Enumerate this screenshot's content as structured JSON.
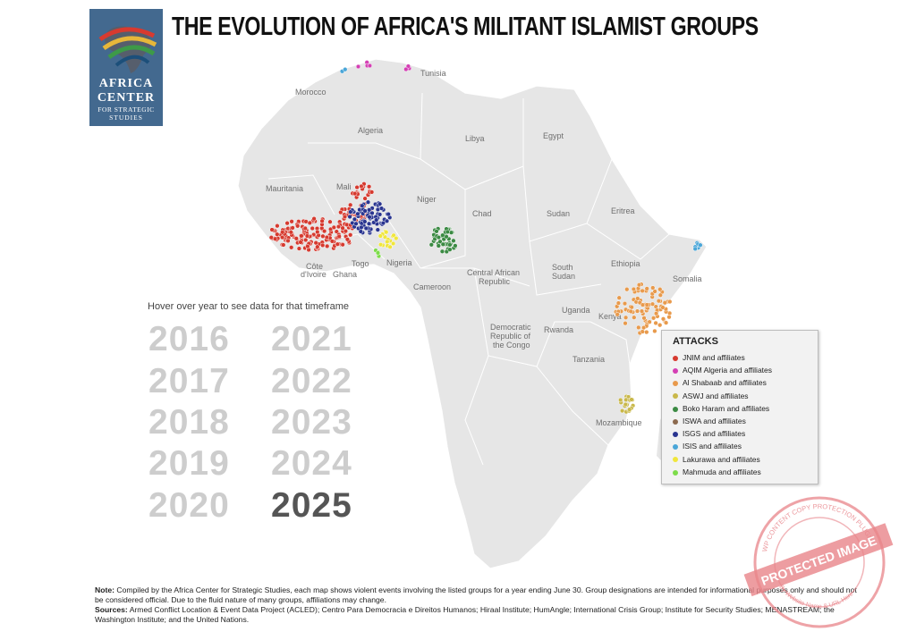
{
  "logo": {
    "line1": "AFRICA",
    "line2": "CENTER",
    "line3": "FOR STRATEGIC",
    "line4": "STUDIES"
  },
  "title": "THE EVOLUTION OF AFRICA'S MILITANT ISLAMIST GROUPS",
  "hint": "Hover over year to see data for that timeframe",
  "years": {
    "y2016": "2016",
    "y2017": "2017",
    "y2018": "2018",
    "y2019": "2019",
    "y2020": "2020",
    "y2021": "2021",
    "y2022": "2022",
    "y2023": "2023",
    "y2024": "2024",
    "y2025": "2025",
    "selected": "2025"
  },
  "countries": {
    "tunisia": "Tunisia",
    "morocco": "Morocco",
    "algeria": "Algeria",
    "libya": "Libya",
    "egypt": "Egypt",
    "mauritania": "Mauritania",
    "mali": "Mali",
    "niger": "Niger",
    "chad": "Chad",
    "sudan": "Sudan",
    "eritrea": "Eritrea",
    "ethiopia": "Ethiopia",
    "somalia": "Somalia",
    "south_sudan_1": "South",
    "south_sudan_2": "Sudan",
    "car_1": "Central African",
    "car_2": "Republic",
    "cameroon": "Cameroon",
    "nigeria": "Nigeria",
    "togo": "Togo",
    "ghana": "Ghana",
    "cote_1": "Côte",
    "cote_2": "d'Ivoire",
    "drc_1": "Democratic",
    "drc_2": "Republic of",
    "drc_3": "the Congo",
    "uganda": "Uganda",
    "kenya": "Kenya",
    "rwanda": "Rwanda",
    "tanzania": "Tanzania",
    "mozambique": "Mozambique"
  },
  "legend": {
    "title": "ATTACKS",
    "items": [
      {
        "label": "JNIM and affiliates",
        "color": "#d63a2f"
      },
      {
        "label": "AQIM Algeria and affiliates",
        "color": "#d43fb4"
      },
      {
        "label": "Al Shabaab and affiliates",
        "color": "#e89a4c"
      },
      {
        "label": "ASWJ and affiliates",
        "color": "#c9b84a"
      },
      {
        "label": "Boko Haram and affiliates",
        "color": "#3b8a43"
      },
      {
        "label": "ISWA and affiliates",
        "color": "#8c6a4f"
      },
      {
        "label": "ISGS and affiliates",
        "color": "#2a3590"
      },
      {
        "label": "ISIS and affiliates",
        "color": "#4aa6d8"
      },
      {
        "label": "Lakurawa and affiliates",
        "color": "#f0e63c"
      },
      {
        "label": "Mahmuda and affiliates",
        "color": "#7ddc4a"
      }
    ]
  },
  "note": {
    "note_label": "Note:",
    "note_text": " Compiled by the Africa Center for Strategic Studies, each map shows violent events involving the listed groups for a year ending June 30. Group designations are intended for informational purposes only and should not be considered official. Due to the fluid nature of many groups, affiliations may change.",
    "sources_label": "Sources:",
    "sources_text": " Armed Conflict Location & Event Data Project (ACLED); Centro Para Democracia e Direitos Humanos; Hiraal Institute; HumAngle; International Crisis Group; Institute for Security Studies; MENASTREAM; the Washington Institute; and the United Nations."
  },
  "stamp": {
    "text": "PROTECTED IMAGE",
    "ring_top": "WP CONTENT COPY PROTECTION PLUGIN",
    "ring_bottom": "By Website Name & URL Here"
  }
}
